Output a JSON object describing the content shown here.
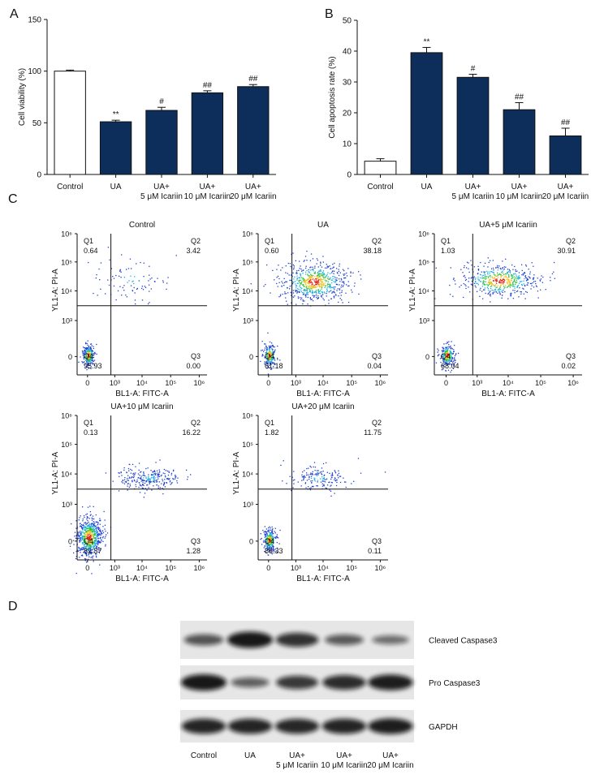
{
  "chart_data": [
    {
      "type": "bar",
      "panel_label": "A",
      "y_label": "Cell viability (%)",
      "categories": [
        "Control",
        "UA",
        "UA+\n5 μM Icariin",
        "UA+\n10 μM Icariin",
        "UA+\n20 μM Icariin"
      ],
      "values": [
        100,
        51,
        62,
        79,
        85
      ],
      "errors": [
        1,
        1.5,
        3,
        2,
        2
      ],
      "annotations": [
        null,
        "**",
        "#",
        "##",
        "##"
      ],
      "colors": [
        "#ffffff",
        "#0d2d5a",
        "#0d2d5a",
        "#0d2d5a",
        "#0d2d5a"
      ],
      "ylim": [
        0,
        150
      ],
      "yticks": [
        0,
        50,
        100,
        150
      ]
    },
    {
      "type": "bar",
      "panel_label": "B",
      "y_label": "Cell apoptosis rate (%)",
      "categories": [
        "Control",
        "UA",
        "UA+\n5 μM Icariin",
        "UA+\n10 μM Icariin",
        "UA+\n20 μM Icariin"
      ],
      "values": [
        4.3,
        39.5,
        31.5,
        21,
        12.5
      ],
      "errors": [
        0.8,
        1.7,
        1,
        2.3,
        2.5
      ],
      "annotations": [
        null,
        "**",
        "#",
        "##",
        "##"
      ],
      "colors": [
        "#ffffff",
        "#0d2d5a",
        "#0d2d5a",
        "#0d2d5a",
        "#0d2d5a"
      ],
      "ylim": [
        0,
        50
      ],
      "yticks": [
        0,
        10,
        20,
        30,
        40,
        50
      ]
    }
  ],
  "flow_cytometry": {
    "panel_label": "C",
    "x_label": "BL1-A: FITC-A",
    "y_label": "YL1-A: PI-A",
    "quadrant_names": [
      "Q1",
      "Q2",
      "Q3",
      "Q4"
    ],
    "yticks": [
      "10⁶",
      "10⁵",
      "10⁴",
      "10³",
      "0"
    ],
    "xticks": [
      "0",
      "10³",
      "10⁴",
      "10⁵",
      "10⁶"
    ],
    "plots": [
      {
        "title": "Control",
        "q1": "0.64",
        "q2": "3.42",
        "q3": "0.00",
        "q4": "95.93"
      },
      {
        "title": "UA",
        "q1": "0.60",
        "q2": "38.18",
        "q3": "0.04",
        "q4": "61.18"
      },
      {
        "title": "UA+5 μM Icariin",
        "q1": "1.03",
        "q2": "30.91",
        "q3": "0.02",
        "q4": "68.04"
      },
      {
        "title": "UA+10 μM Icariin",
        "q1": "0.13",
        "q2": "16.22",
        "q3": "1.28",
        "q4": "82.37"
      },
      {
        "title": "UA+20 μM Icariin",
        "q1": "1.82",
        "q2": "11.75",
        "q3": "0.11",
        "q4": "86.33"
      }
    ]
  },
  "western_blot": {
    "panel_label": "D",
    "rows": [
      "Cleaved Caspase3",
      "Pro Caspase3",
      "GAPDH"
    ],
    "lanes": [
      "Control",
      "UA",
      "UA+\n5 μM Icariin",
      "UA+\n10 μM Icariin",
      "UA+\n20 μM Icariin"
    ]
  }
}
